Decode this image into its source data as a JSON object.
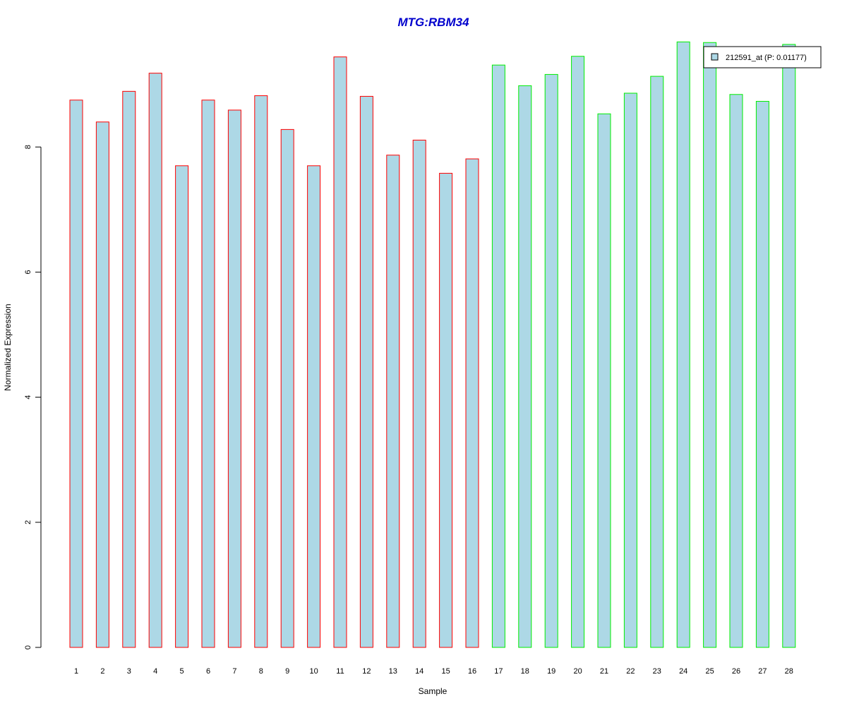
{
  "chart_data": {
    "type": "bar",
    "title": "MTG:RBM34",
    "xlabel": "Sample",
    "ylabel": "Normalized Expression",
    "ylim": [
      0,
      9.8
    ],
    "yticks": [
      0,
      2,
      4,
      6,
      8
    ],
    "categories": [
      "1",
      "2",
      "3",
      "4",
      "5",
      "6",
      "7",
      "8",
      "9",
      "10",
      "11",
      "12",
      "13",
      "14",
      "15",
      "16",
      "17",
      "18",
      "19",
      "20",
      "21",
      "22",
      "23",
      "24",
      "25",
      "26",
      "27",
      "28"
    ],
    "series": [
      {
        "name": "212591_at (P: 0.01177)",
        "values": [
          8.75,
          8.4,
          8.89,
          9.18,
          7.7,
          8.75,
          8.59,
          8.82,
          8.28,
          7.7,
          9.44,
          8.81,
          7.87,
          8.11,
          7.58,
          7.81,
          9.31,
          8.98,
          9.16,
          9.45,
          8.53,
          8.86,
          9.13,
          9.68,
          9.67,
          8.84,
          8.73,
          9.64
        ]
      }
    ],
    "group_border_colors": [
      "#ff0000",
      "#ff0000",
      "#ff0000",
      "#ff0000",
      "#ff0000",
      "#ff0000",
      "#ff0000",
      "#ff0000",
      "#ff0000",
      "#ff0000",
      "#ff0000",
      "#ff0000",
      "#ff0000",
      "#ff0000",
      "#ff0000",
      "#ff0000",
      "#00ee00",
      "#00ee00",
      "#00ee00",
      "#00ee00",
      "#00ee00",
      "#00ee00",
      "#00ee00",
      "#00ee00",
      "#00ee00",
      "#00ee00",
      "#00ee00",
      "#00ee00"
    ],
    "bar_fill": "#add8e6",
    "title_color": "#0000cd",
    "legend": {
      "label": "212591_at (P: 0.01177)",
      "position": "top-right"
    },
    "grid": false
  }
}
